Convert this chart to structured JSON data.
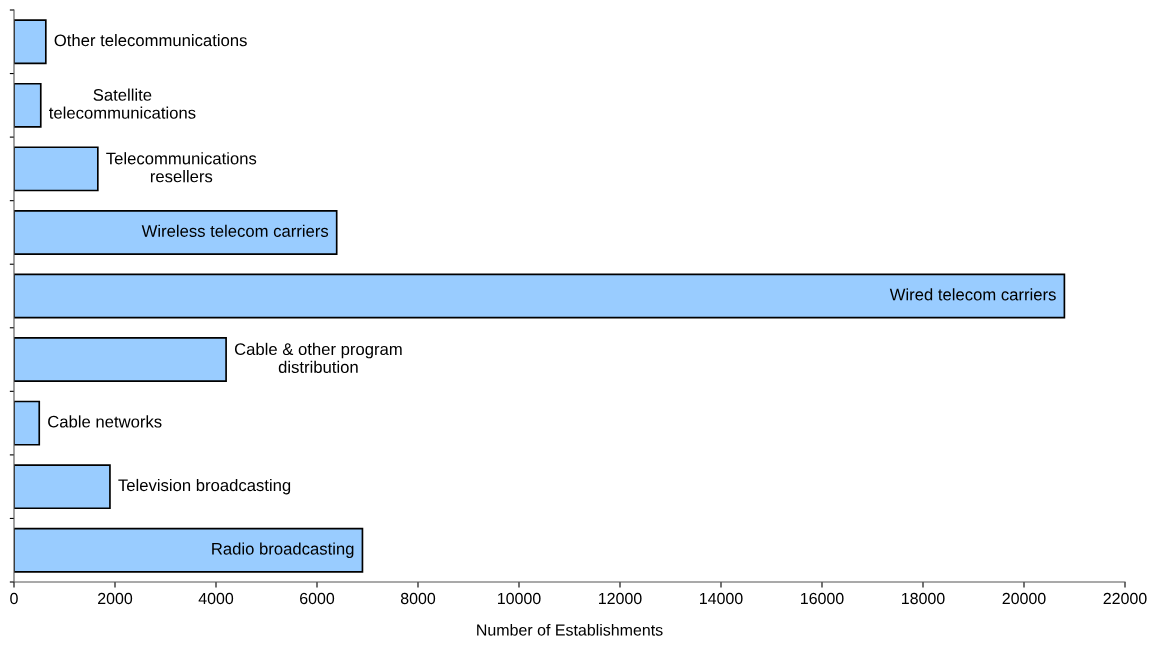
{
  "chart_data": {
    "type": "bar",
    "orientation": "horizontal",
    "xlabel": "Number of Establishments",
    "categories": [
      "Other telecommunications",
      "Satellite\ntelecommunications",
      "Telecommunications\nresellers",
      "Wireless telecom carriers",
      "Wired telecom carriers",
      "Cable & other program\ndistribution",
      "Cable networks",
      "Television broadcasting",
      "Radio broadcasting"
    ],
    "values": [
      630,
      530,
      1660,
      6390,
      20800,
      4200,
      500,
      1900,
      6900
    ],
    "color": "#99ccff",
    "xlim": [
      0,
      22000
    ],
    "xticks": [
      0,
      2000,
      4000,
      6000,
      8000,
      10000,
      12000,
      14000,
      16000,
      18000,
      20000,
      22000
    ],
    "tick_labels": "x",
    "grid": false,
    "legend": false
  }
}
